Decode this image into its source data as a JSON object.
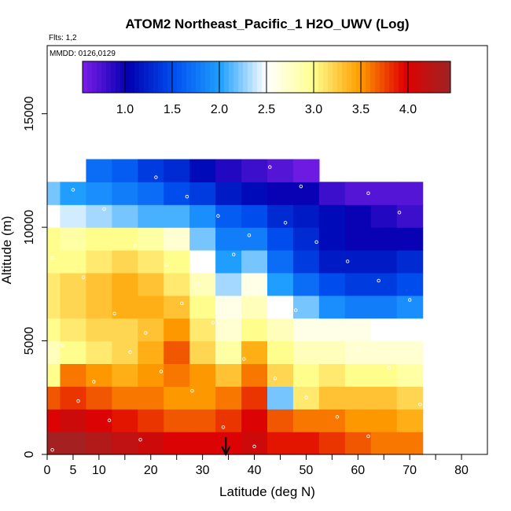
{
  "chart_data": {
    "type": "heatmap",
    "title": "ATOM2 Northeast_Pacific_1 H2O_UWV (Log)",
    "annotations": {
      "flights": "Flts: 1,2",
      "dates": "MMDD: 0126,0129"
    },
    "xlabel": "Latitude (deg N)",
    "ylabel": "Altitude (m)",
    "xlim": [
      0,
      85
    ],
    "ylim": [
      0,
      18000
    ],
    "x_ticks": [
      0,
      5,
      10,
      20,
      30,
      40,
      50,
      60,
      70,
      80
    ],
    "x_tick_labels": [
      "0",
      "5",
      "10",
      "20",
      "30",
      "40",
      "50",
      "60",
      "70",
      "80"
    ],
    "x_minor_ticks": [
      15,
      25,
      35,
      45,
      55,
      65,
      75
    ],
    "y_ticks": [
      0,
      5000,
      10000,
      15000
    ],
    "y_tick_labels": [
      "0",
      "5000",
      "10000",
      "15000"
    ],
    "colorbar": {
      "range": [
        0.55,
        4.45
      ],
      "ticks": [
        1.0,
        1.5,
        2.0,
        2.5,
        3.0,
        3.5,
        4.0
      ],
      "tick_labels": [
        "1.0",
        "1.5",
        "2.0",
        "2.5",
        "3.0",
        "3.5",
        "4.0"
      ],
      "colors": [
        "#7a1ee8",
        "#0000b0",
        "#0050f0",
        "#20a0ff",
        "#ffffff",
        "#ffff90",
        "#ffa000",
        "#e00000",
        "#9e2424"
      ]
    },
    "marker": {
      "latitude": 34.5,
      "label": "arrow"
    },
    "grid": false,
    "legend": "colorbar-top-inside",
    "z_description": "log10 H2O (ppmv), columns by latitude, rows by altitude",
    "x": [
      0,
      5,
      10,
      15,
      20,
      25,
      30,
      35,
      40,
      45,
      50,
      55,
      60,
      65,
      70
    ],
    "y_levels": [
      500,
      1500,
      2500,
      3500,
      4500,
      5500,
      6500,
      7500,
      8500,
      9500,
      10500,
      11500,
      12500
    ],
    "z": [
      [
        4.4,
        4.4,
        4.3,
        4.2,
        4.1,
        4.0,
        4.0,
        4.0,
        4.1,
        3.9,
        3.9,
        3.8,
        3.7,
        3.6,
        3.6
      ],
      [
        4.0,
        4.1,
        4.0,
        3.9,
        3.8,
        3.7,
        3.7,
        3.8,
        4.0,
        3.7,
        3.6,
        3.6,
        3.5,
        3.5,
        3.4
      ],
      [
        3.7,
        3.8,
        3.7,
        3.6,
        3.6,
        3.5,
        3.5,
        3.6,
        3.8,
        2.2,
        3.1,
        3.3,
        3.3,
        3.3,
        3.2
      ],
      [
        3.0,
        3.6,
        3.5,
        3.4,
        3.5,
        3.6,
        3.5,
        3.3,
        3.6,
        3.2,
        3.0,
        3.1,
        3.0,
        3.0,
        2.9
      ],
      [
        2.8,
        3.0,
        3.1,
        3.2,
        3.4,
        3.7,
        3.2,
        2.9,
        3.4,
        3.0,
        2.8,
        2.8,
        2.7,
        2.7,
        2.7
      ],
      [
        3.0,
        3.1,
        3.2,
        3.2,
        3.3,
        3.5,
        3.1,
        2.7,
        3.0,
        2.8,
        2.6,
        2.6,
        2.6,
        2.5,
        2.5
      ],
      [
        3.1,
        3.2,
        3.3,
        3.4,
        3.4,
        3.3,
        3.0,
        2.6,
        2.8,
        2.5,
        2.2,
        1.9,
        1.8,
        1.8,
        1.9
      ],
      [
        3.1,
        3.2,
        3.3,
        3.4,
        3.3,
        3.1,
        2.8,
        2.3,
        2.6,
        2.0,
        1.7,
        1.5,
        1.4,
        1.4,
        1.5
      ],
      [
        3.0,
        3.0,
        3.1,
        3.2,
        3.1,
        3.0,
        2.5,
        2.0,
        2.2,
        1.7,
        1.4,
        1.2,
        1.2,
        1.2,
        1.3
      ],
      [
        3.0,
        2.9,
        3.0,
        3.0,
        2.9,
        2.7,
        2.2,
        1.8,
        1.8,
        1.5,
        1.3,
        1.1,
        1.0,
        1.0,
        1.0
      ],
      [
        2.5,
        2.4,
        2.3,
        2.2,
        2.1,
        2.1,
        1.9,
        1.6,
        1.5,
        1.3,
        1.2,
        1.1,
        1.0,
        0.9,
        0.8
      ],
      [
        2.2,
        2.0,
        1.9,
        1.8,
        1.7,
        1.5,
        1.4,
        1.2,
        1.1,
        1.0,
        1.0,
        0.8,
        0.7,
        0.7,
        0.7
      ],
      [
        null,
        null,
        1.7,
        1.6,
        1.4,
        1.3,
        1.1,
        0.9,
        0.8,
        0.7,
        0.6,
        null,
        null,
        null,
        null
      ]
    ]
  }
}
